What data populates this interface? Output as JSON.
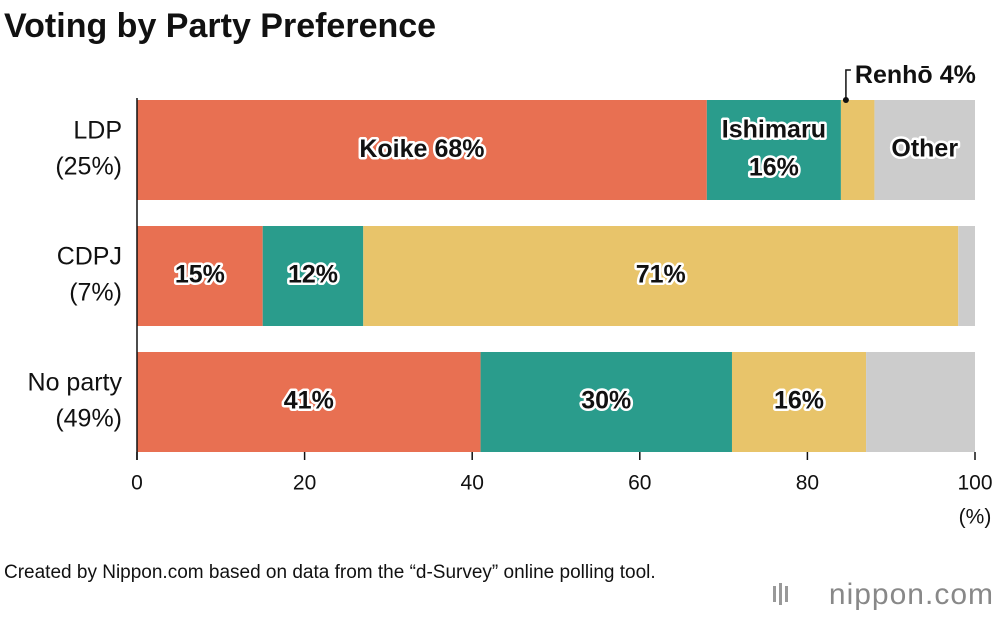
{
  "chart_data": {
    "type": "stacked-bar-horizontal",
    "title": "Voting by Party Preference",
    "categories": [
      "LDP",
      "CDPJ",
      "No party"
    ],
    "category_notes": [
      "(25%)",
      "(7%)",
      "(49%)"
    ],
    "series": [
      {
        "name": "Koike",
        "color": "#e87052",
        "values": [
          68,
          15,
          41
        ],
        "value_labels": [
          "68%",
          "15%",
          "41%"
        ]
      },
      {
        "name": "Ishimaru",
        "color": "#2a9c8c",
        "values": [
          16,
          12,
          30
        ],
        "value_labels": [
          "16%",
          "12%",
          "30%"
        ]
      },
      {
        "name": "Renhō",
        "color": "#e8c46a",
        "values": [
          4,
          71,
          16
        ],
        "value_labels": [
          "4%",
          "71%",
          "16%"
        ]
      },
      {
        "name": "Other",
        "color": "#cccccc",
        "values": [
          12,
          2,
          13
        ]
      }
    ],
    "xlim": [
      0,
      100
    ],
    "xticks": [
      0,
      20,
      40,
      60,
      80,
      100
    ],
    "x_label": "(%)",
    "source": "Created by Nippon.com based on data from the “d-Survey” online polling tool.",
    "logo": "nippon.com"
  }
}
